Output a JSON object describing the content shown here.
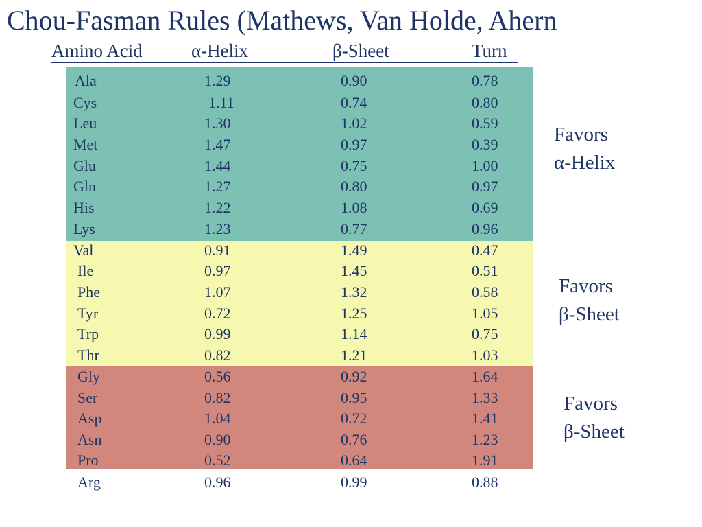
{
  "title": "Chou-Fasman Rules (Mathews, Van Holde, Ahern",
  "headers": {
    "amino_acid": "Amino Acid",
    "helix": "α-Helix",
    "sheet": "β-Sheet",
    "turn": "Turn"
  },
  "rows": [
    {
      "aa": "Ala",
      "helix": "1.29",
      "sheet": "0.90",
      "turn": "0.78"
    },
    {
      "aa": "Cys",
      "helix": "1.11",
      "sheet": "0.74",
      "turn": "0.80"
    },
    {
      "aa": "Leu",
      "helix": "1.30",
      "sheet": "1.02",
      "turn": "0.59"
    },
    {
      "aa": "Met",
      "helix": "1.47",
      "sheet": "0.97",
      "turn": "0.39"
    },
    {
      "aa": "Glu",
      "helix": "1.44",
      "sheet": "0.75",
      "turn": "1.00"
    },
    {
      "aa": "Gln",
      "helix": "1.27",
      "sheet": "0.80",
      "turn": "0.97"
    },
    {
      "aa": "His",
      "helix": "1.22",
      "sheet": "1.08",
      "turn": "0.69"
    },
    {
      "aa": "Lys",
      "helix": "1.23",
      "sheet": "0.77",
      "turn": "0.96"
    },
    {
      "aa": "Val",
      "helix": "0.91",
      "sheet": "1.49",
      "turn": "0.47"
    },
    {
      "aa": "Ile",
      "helix": "0.97",
      "sheet": "1.45",
      "turn": "0.51"
    },
    {
      "aa": "Phe",
      "helix": "1.07",
      "sheet": "1.32",
      "turn": "0.58"
    },
    {
      "aa": "Tyr",
      "helix": "0.72",
      "sheet": "1.25",
      "turn": "1.05"
    },
    {
      "aa": "Trp",
      "helix": "0.99",
      "sheet": "1.14",
      "turn": "0.75"
    },
    {
      "aa": "Thr",
      "helix": "0.82",
      "sheet": "1.21",
      "turn": "1.03"
    },
    {
      "aa": "Gly",
      "helix": "0.56",
      "sheet": "0.92",
      "turn": "1.64"
    },
    {
      "aa": "Ser",
      "helix": "0.82",
      "sheet": "0.95",
      "turn": "1.33"
    },
    {
      "aa": "Asp",
      "helix": "1.04",
      "sheet": "0.72",
      "turn": "1.41"
    },
    {
      "aa": "Asn",
      "helix": "0.90",
      "sheet": "0.76",
      "turn": "1.23"
    },
    {
      "aa": "Pro",
      "helix": "0.52",
      "sheet": "0.64",
      "turn": "1.91"
    },
    {
      "aa": "Arg",
      "helix": "0.96",
      "sheet": "0.99",
      "turn": "0.88"
    }
  ],
  "labels": {
    "helix": {
      "line1": "Favors",
      "line2": "α-Helix"
    },
    "sheet": {
      "line1": "Favors",
      "line2": "β-Sheet"
    },
    "turn": {
      "line1": "Favors",
      "line2": "β-Sheet"
    }
  },
  "colors": {
    "text": "#1f3566",
    "helix_band": "#7cc1b4",
    "sheet_band": "#f6f8b0",
    "turn_band": "#d2877c"
  }
}
